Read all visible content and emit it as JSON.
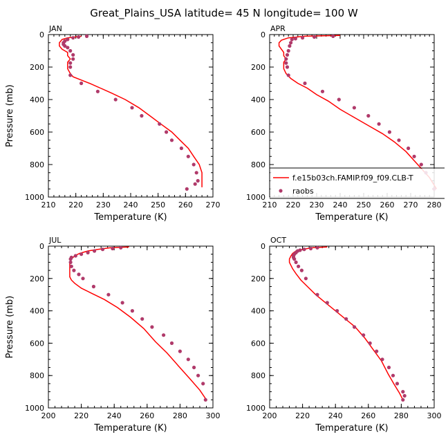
{
  "figure": {
    "title": "Great_Plains_USA  latitude= 45 N longitude= 100 W"
  },
  "legend": {
    "model_label": "f.e15b03ch.FAMIP.f09_f09.CLB-T",
    "obs_label": "raobs",
    "panel": "APR",
    "placement": "bottom-right"
  },
  "colors": {
    "model": "#ff0000",
    "obs": "#b03a6a"
  },
  "chart_data": [
    {
      "type": "line",
      "panel_label": "JAN",
      "xlabel": "Temperature (K)",
      "ylabel": "Pressure (mb)",
      "xlim": [
        210,
        270
      ],
      "ylim": [
        1000,
        0
      ],
      "xticks": [
        210,
        220,
        230,
        240,
        250,
        260,
        270
      ],
      "yticks": [
        0,
        200,
        400,
        600,
        800,
        1000
      ],
      "series": [
        {
          "name": "f.e15b03ch.FAMIP.f09_f09.CLB-T",
          "kind": "line",
          "x": [
            222,
            217,
            215,
            214,
            214,
            215,
            216,
            217,
            217,
            218,
            217,
            217,
            217,
            218,
            219,
            222,
            225,
            229,
            233,
            238,
            243,
            247,
            251,
            255,
            258,
            261,
            263,
            265,
            266,
            266
          ],
          "y": [
            10,
            20,
            30,
            50,
            70,
            90,
            100,
            110,
            130,
            150,
            170,
            190,
            210,
            240,
            260,
            280,
            300,
            330,
            360,
            400,
            450,
            500,
            550,
            600,
            650,
            700,
            750,
            800,
            850,
            940
          ]
        },
        {
          "name": "raobs",
          "kind": "scatter",
          "x": [
            224,
            221,
            219,
            217,
            216,
            215.5,
            215.5,
            216,
            217,
            218,
            219,
            219,
            218,
            218,
            218,
            222,
            228,
            234.5,
            240.5,
            244,
            250.5,
            253,
            255,
            258.5,
            261,
            263,
            264,
            264.5,
            263.5,
            260.5
          ],
          "y": [
            10,
            15,
            20,
            30,
            40,
            50,
            60,
            70,
            80,
            100,
            125,
            150,
            175,
            200,
            250,
            300,
            350,
            400,
            450,
            500,
            550,
            600,
            650,
            700,
            750,
            800,
            850,
            900,
            920,
            950
          ]
        }
      ]
    },
    {
      "type": "line",
      "panel_label": "APR",
      "xlabel": "Temperature (K)",
      "ylabel": "",
      "xlim": [
        210,
        280
      ],
      "ylim": [
        1000,
        0
      ],
      "xticks": [
        210,
        220,
        230,
        240,
        250,
        260,
        270,
        280
      ],
      "yticks": [
        0,
        200,
        400,
        600,
        800,
        1000
      ],
      "series": [
        {
          "name": "f.e15b03ch.FAMIP.f09_f09.CLB-T",
          "kind": "line",
          "x": [
            240,
            225,
            218,
            215,
            214,
            214,
            215,
            216,
            216,
            217,
            216,
            216,
            216,
            217,
            219,
            222,
            226,
            230,
            235,
            240,
            246,
            252,
            258,
            263,
            268,
            273,
            278,
            281
          ],
          "y": [
            5,
            10,
            20,
            35,
            50,
            70,
            90,
            110,
            130,
            150,
            170,
            190,
            210,
            240,
            270,
            300,
            330,
            370,
            410,
            460,
            510,
            560,
            610,
            660,
            720,
            800,
            880,
            950
          ]
        },
        {
          "name": "raobs",
          "kind": "scatter",
          "x": [
            237,
            229,
            224,
            221,
            219.5,
            219,
            218.5,
            218,
            217.5,
            217,
            217,
            217.5,
            218,
            225,
            232.5,
            239.5,
            246,
            252,
            256.5,
            261,
            265,
            269,
            271.5,
            274.5,
            276.5,
            280
          ],
          "y": [
            10,
            15,
            20,
            25,
            30,
            50,
            70,
            100,
            125,
            150,
            175,
            200,
            250,
            300,
            350,
            400,
            450,
            500,
            550,
            600,
            650,
            700,
            750,
            800,
            850,
            950
          ]
        }
      ]
    },
    {
      "type": "line",
      "panel_label": "JUL",
      "xlabel": "Temperature (K)",
      "ylabel": "Pressure (mb)",
      "xlim": [
        200,
        300
      ],
      "ylim": [
        1000,
        0
      ],
      "xticks": [
        200,
        220,
        240,
        260,
        280,
        300
      ],
      "yticks": [
        0,
        200,
        400,
        600,
        800,
        1000
      ],
      "series": [
        {
          "name": "f.e15b03ch.FAMIP.f09_f09.CLB-T",
          "kind": "line",
          "x": [
            249,
            238,
            230,
            224,
            219,
            216,
            214,
            213,
            213,
            213,
            213,
            214,
            216,
            220,
            226,
            234,
            242,
            250,
            258,
            265,
            272,
            279,
            286,
            292,
            296
          ],
          "y": [
            5,
            10,
            20,
            30,
            45,
            60,
            80,
            100,
            130,
            160,
            190,
            210,
            230,
            260,
            290,
            330,
            380,
            440,
            510,
            590,
            660,
            740,
            820,
            890,
            950
          ]
        },
        {
          "name": "raobs",
          "kind": "scatter",
          "x": [
            244,
            239,
            233,
            228,
            224,
            220,
            216.5,
            214,
            213.5,
            213.5,
            214,
            215.5,
            218.5,
            221,
            227.5,
            236.5,
            245,
            251,
            257,
            263,
            270,
            275,
            280,
            285,
            288.5,
            291,
            294,
            295.5
          ],
          "y": [
            10,
            15,
            20,
            30,
            40,
            50,
            60,
            70,
            80,
            100,
            125,
            150,
            175,
            200,
            250,
            300,
            350,
            400,
            450,
            500,
            550,
            600,
            650,
            700,
            750,
            800,
            850,
            950
          ]
        }
      ]
    },
    {
      "type": "line",
      "panel_label": "OCT",
      "xlabel": "Temperature (K)",
      "ylabel": "",
      "xlim": [
        200,
        300
      ],
      "ylim": [
        1000,
        0
      ],
      "xticks": [
        200,
        220,
        240,
        260,
        280,
        300
      ],
      "yticks": [
        0,
        200,
        400,
        600,
        800,
        1000
      ],
      "series": [
        {
          "name": "f.e15b03ch.FAMIP.f09_f09.CLB-T",
          "kind": "line",
          "x": [
            235,
            226,
            220,
            216,
            214,
            213,
            212,
            212,
            213,
            214,
            216,
            219,
            223,
            228,
            234,
            240,
            246,
            252,
            258,
            263,
            268,
            272,
            276,
            279,
            281
          ],
          "y": [
            5,
            10,
            20,
            30,
            45,
            60,
            80,
            100,
            120,
            140,
            170,
            210,
            250,
            300,
            350,
            400,
            450,
            500,
            570,
            640,
            710,
            790,
            860,
            910,
            950
          ]
        },
        {
          "name": "raobs",
          "kind": "scatter",
          "x": [
            229,
            225,
            221,
            218.5,
            217,
            216,
            215,
            214.5,
            214.5,
            215,
            216,
            217.5,
            219.5,
            222,
            229,
            235,
            241,
            246.5,
            251.5,
            257,
            261,
            265,
            268.5,
            272.5,
            275,
            277.5,
            281,
            282,
            281
          ],
          "y": [
            10,
            15,
            20,
            25,
            30,
            40,
            50,
            60,
            70,
            80,
            100,
            125,
            150,
            200,
            300,
            350,
            400,
            450,
            500,
            550,
            600,
            650,
            700,
            750,
            800,
            850,
            900,
            925,
            950
          ]
        }
      ]
    }
  ]
}
